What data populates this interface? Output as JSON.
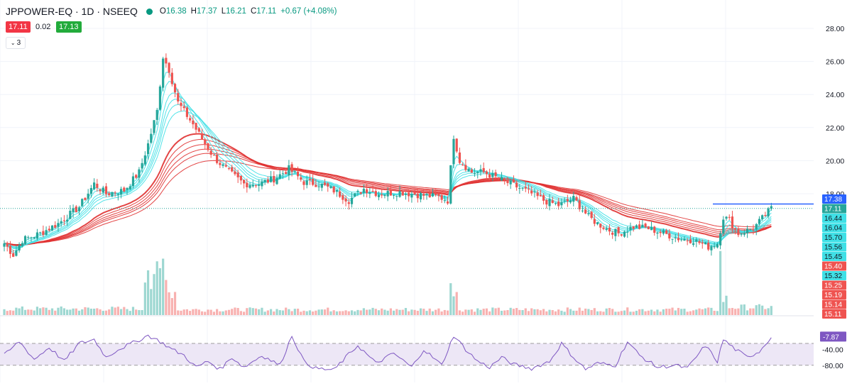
{
  "header": {
    "title": "JPPOWER-EQ · 1D · NSEEQ",
    "status_color": "#089981",
    "open_label": "O",
    "open": "16.38",
    "high_label": "H",
    "high": "17.37",
    "low_label": "L",
    "low": "16.21",
    "close_label": "C",
    "close": "17.11",
    "change": "+0.67 (+4.08%)"
  },
  "trade": {
    "sell_price": "17.11",
    "spread": "0.02",
    "buy_price": "17.13",
    "sell_color": "#f23645",
    "buy_color": "#22ab3b"
  },
  "indicators_toggle": {
    "icon": "chevron-down-icon",
    "count": "3"
  },
  "colors": {
    "up": "#26a69a",
    "down": "#ef5350",
    "ribbon_fast": "#40e0e6",
    "ribbon_slow": "#e03131",
    "rsi_line": "#7e57c2",
    "rsi_band": "#ede7f6",
    "hline": "#2962ff"
  },
  "chart_data": [
    {
      "type": "candlestick",
      "y_axis_ticks": [
        "28.00",
        "26.00",
        "24.00",
        "22.00",
        "20.00",
        "18.00"
      ],
      "ylim": [
        14.8,
        28.5
      ],
      "horizontal_line": 17.38,
      "price_labels": [
        {
          "text": "17.38",
          "value": 17.38,
          "kind": "hline"
        },
        {
          "text": "17.11",
          "value": 17.11,
          "kind": "last"
        },
        {
          "text": "16.44",
          "value": 16.44,
          "kind": "fast"
        },
        {
          "text": "16.04",
          "value": 16.04,
          "kind": "fast"
        },
        {
          "text": "15.70",
          "value": 15.7,
          "kind": "fast"
        },
        {
          "text": "15.56",
          "value": 15.56,
          "kind": "fast"
        },
        {
          "text": "15.45",
          "value": 15.45,
          "kind": "fast"
        },
        {
          "text": "15.40",
          "value": 15.4,
          "kind": "slow"
        },
        {
          "text": "15.32",
          "value": 15.32,
          "kind": "fast"
        },
        {
          "text": "15.25",
          "value": 15.25,
          "kind": "slow"
        },
        {
          "text": "15.19",
          "value": 15.19,
          "kind": "slow"
        },
        {
          "text": "15.14",
          "value": 15.14,
          "kind": "slow"
        },
        {
          "text": "15.11",
          "value": 15.11,
          "kind": "slow"
        }
      ],
      "price_path": [
        [
          0,
          15.0
        ],
        [
          3,
          14.3
        ],
        [
          6,
          15.2
        ],
        [
          12,
          15.6
        ],
        [
          18,
          16.2
        ],
        [
          25,
          17.2
        ],
        [
          30,
          18.6
        ],
        [
          34,
          18.0
        ],
        [
          40,
          18.2
        ],
        [
          45,
          19.3
        ],
        [
          48,
          21.0
        ],
        [
          51,
          23.0
        ],
        [
          53,
          26.3
        ],
        [
          55,
          25.5
        ],
        [
          58,
          23.5
        ],
        [
          63,
          22.2
        ],
        [
          66,
          21.3
        ],
        [
          70,
          20.2
        ],
        [
          75,
          19.3
        ],
        [
          80,
          18.6
        ],
        [
          85,
          18.6
        ],
        [
          90,
          18.9
        ],
        [
          95,
          19.5
        ],
        [
          100,
          18.7
        ],
        [
          105,
          18.6
        ],
        [
          110,
          18.2
        ],
        [
          115,
          17.6
        ],
        [
          120,
          18.3
        ],
        [
          125,
          18.0
        ],
        [
          132,
          18.1
        ],
        [
          140,
          17.9
        ],
        [
          145,
          17.8
        ],
        [
          148,
          17.6
        ],
        [
          150,
          21.5
        ],
        [
          152,
          20.0
        ],
        [
          156,
          19.3
        ],
        [
          160,
          19.3
        ],
        [
          165,
          18.9
        ],
        [
          170,
          18.5
        ],
        [
          175,
          18.1
        ],
        [
          180,
          17.6
        ],
        [
          185,
          17.3
        ],
        [
          190,
          17.7
        ],
        [
          195,
          16.6
        ],
        [
          198,
          16.2
        ],
        [
          202,
          15.8
        ],
        [
          205,
          15.6
        ],
        [
          210,
          16.0
        ],
        [
          215,
          15.9
        ],
        [
          220,
          15.6
        ],
        [
          225,
          15.3
        ],
        [
          230,
          15.2
        ],
        [
          235,
          14.8
        ],
        [
          238,
          15.0
        ],
        [
          240,
          16.6
        ],
        [
          242,
          16.4
        ],
        [
          245,
          15.6
        ],
        [
          250,
          15.9
        ],
        [
          253,
          16.5
        ],
        [
          256,
          17.11
        ]
      ],
      "volume": [
        {
          "from": 0,
          "to": 47,
          "level": 0.08
        },
        {
          "from": 47,
          "to": 49,
          "level": 0.65
        },
        {
          "from": 49,
          "to": 51,
          "level": 0.38
        },
        {
          "from": 51,
          "to": 53,
          "level": 0.55
        },
        {
          "from": 53,
          "to": 55,
          "level": 0.7
        },
        {
          "from": 55,
          "to": 58,
          "level": 0.3
        },
        {
          "from": 58,
          "to": 149,
          "level": 0.07
        },
        {
          "from": 149,
          "to": 150,
          "level": 0.68
        },
        {
          "from": 150,
          "to": 152,
          "level": 0.25
        },
        {
          "from": 152,
          "to": 239,
          "level": 0.07
        },
        {
          "from": 239,
          "to": 240,
          "level": 0.72
        },
        {
          "from": 240,
          "to": 242,
          "level": 0.2
        },
        {
          "from": 242,
          "to": 257,
          "level": 0.1
        }
      ],
      "volume_labels": []
    },
    {
      "type": "line",
      "indicator": "RSI",
      "y_axis_ticks": [
        "-40.00",
        "-80.00"
      ],
      "ylim": [
        -100,
        0
      ],
      "band": [
        -80,
        -25
      ],
      "last_label": "-7.87",
      "path": [
        [
          0,
          -55
        ],
        [
          5,
          -20
        ],
        [
          10,
          -65
        ],
        [
          15,
          -35
        ],
        [
          20,
          -70
        ],
        [
          25,
          -25
        ],
        [
          30,
          -15
        ],
        [
          34,
          -60
        ],
        [
          38,
          -40
        ],
        [
          44,
          -20
        ],
        [
          48,
          -5
        ],
        [
          52,
          -20
        ],
        [
          56,
          -40
        ],
        [
          60,
          -55
        ],
        [
          64,
          -85
        ],
        [
          68,
          -70
        ],
        [
          72,
          -90
        ],
        [
          76,
          -60
        ],
        [
          80,
          -85
        ],
        [
          86,
          -55
        ],
        [
          92,
          -80
        ],
        [
          96,
          -5
        ],
        [
          100,
          -70
        ],
        [
          104,
          -88
        ],
        [
          110,
          -92
        ],
        [
          114,
          -60
        ],
        [
          118,
          -30
        ],
        [
          124,
          -75
        ],
        [
          130,
          -50
        ],
        [
          136,
          -85
        ],
        [
          140,
          -40
        ],
        [
          146,
          -80
        ],
        [
          150,
          -5
        ],
        [
          154,
          -40
        ],
        [
          158,
          -70
        ],
        [
          162,
          -85
        ],
        [
          166,
          -60
        ],
        [
          170,
          -78
        ],
        [
          176,
          -88
        ],
        [
          182,
          -70
        ],
        [
          186,
          -25
        ],
        [
          190,
          -60
        ],
        [
          194,
          -90
        ],
        [
          198,
          -75
        ],
        [
          204,
          -80
        ],
        [
          208,
          -20
        ],
        [
          212,
          -55
        ],
        [
          218,
          -85
        ],
        [
          224,
          -80
        ],
        [
          228,
          -88
        ],
        [
          234,
          -30
        ],
        [
          238,
          -70
        ],
        [
          240,
          -15
        ],
        [
          244,
          -40
        ],
        [
          248,
          -60
        ],
        [
          252,
          -45
        ],
        [
          256,
          -7.87
        ]
      ]
    }
  ]
}
